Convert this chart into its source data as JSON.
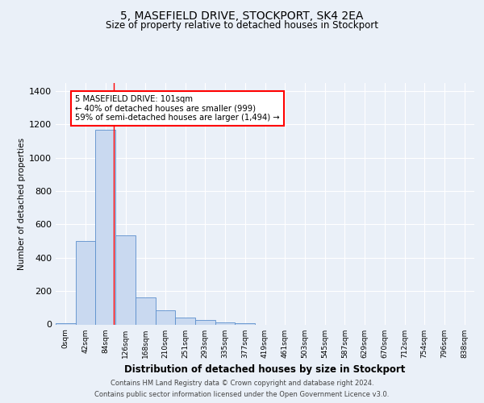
{
  "title1": "5, MASEFIELD DRIVE, STOCKPORT, SK4 2EA",
  "title2": "Size of property relative to detached houses in Stockport",
  "xlabel": "Distribution of detached houses by size in Stockport",
  "ylabel": "Number of detached properties",
  "bar_labels": [
    "0sqm",
    "42sqm",
    "84sqm",
    "126sqm",
    "168sqm",
    "210sqm",
    "251sqm",
    "293sqm",
    "335sqm",
    "377sqm",
    "419sqm",
    "461sqm",
    "503sqm",
    "545sqm",
    "587sqm",
    "629sqm",
    "670sqm",
    "712sqm",
    "754sqm",
    "796sqm",
    "838sqm"
  ],
  "bar_values": [
    8,
    500,
    1165,
    535,
    163,
    85,
    40,
    25,
    13,
    8,
    0,
    0,
    0,
    0,
    0,
    0,
    0,
    0,
    0,
    0,
    0
  ],
  "bar_color": "#c9d9f0",
  "bar_edge_color": "#5b8fcc",
  "annotation_box_text": "5 MASEFIELD DRIVE: 101sqm\n← 40% of detached houses are smaller (999)\n59% of semi-detached houses are larger (1,494) →",
  "red_line_x": 2.42,
  "ylim": [
    0,
    1450
  ],
  "yticks": [
    0,
    200,
    400,
    600,
    800,
    1000,
    1200,
    1400
  ],
  "footer_line1": "Contains HM Land Registry data © Crown copyright and database right 2024.",
  "footer_line2": "Contains public sector information licensed under the Open Government Licence v3.0.",
  "bg_color": "#eaf0f8",
  "plot_bg_color": "#eaf0f8"
}
